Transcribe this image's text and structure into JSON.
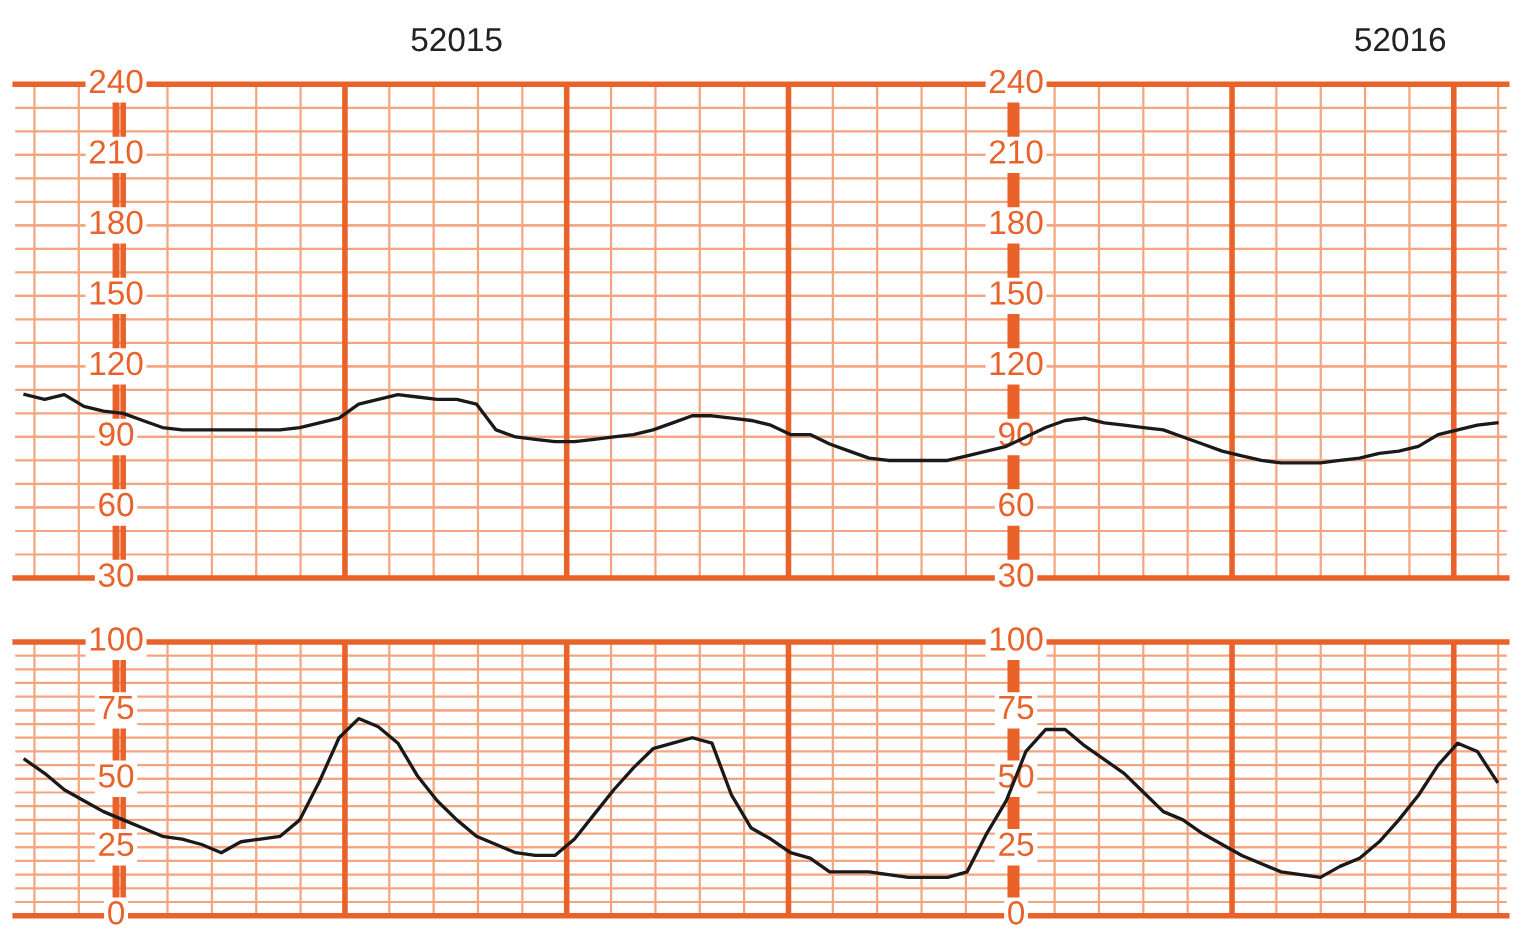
{
  "chart_data": [
    {
      "type": "line",
      "annotations": [
        "52015",
        "52016"
      ],
      "categories": [
        null,
        null,
        null,
        null,
        null,
        null,
        null,
        null,
        null,
        null,
        null,
        null,
        null,
        null,
        null,
        null,
        null,
        null,
        null,
        null,
        null,
        null,
        null,
        null,
        null,
        null,
        null,
        null,
        null,
        null,
        null,
        null,
        null,
        null,
        null,
        null,
        null,
        null,
        null,
        null,
        null,
        null,
        null,
        null,
        null,
        null,
        null,
        null,
        null,
        null,
        null,
        null,
        null,
        null,
        null,
        null,
        null,
        null,
        null,
        null,
        null,
        null,
        null,
        null,
        null,
        null,
        null,
        null,
        null,
        null,
        null,
        null,
        null,
        null,
        null,
        null
      ],
      "series": [
        {
          "color": "#1a1a1a",
          "values": [
            108,
            106,
            108,
            103,
            101,
            100,
            97,
            94,
            93,
            93,
            93,
            93,
            93,
            93,
            94,
            96,
            98,
            104,
            106,
            108,
            107,
            106,
            106,
            104,
            93,
            90,
            89,
            88,
            88,
            89,
            90,
            91,
            93,
            96,
            99,
            99,
            98,
            97,
            95,
            91,
            91,
            87,
            84,
            81,
            80,
            80,
            80,
            80,
            82,
            84,
            86,
            90,
            94,
            97,
            98,
            96,
            95,
            94,
            93,
            90,
            87,
            84,
            82,
            80,
            79,
            79,
            79,
            80,
            81,
            83,
            84,
            86,
            91,
            93,
            95,
            96
          ]
        }
      ],
      "ylim": [
        30,
        240
      ],
      "yticks": [
        30,
        60,
        90,
        120,
        150,
        180,
        210,
        240
      ],
      "y2lim": [
        30,
        240
      ],
      "y2ticks": [
        30,
        60,
        90,
        120,
        150,
        180,
        210,
        240
      ],
      "grid": true,
      "tick_labels": "y",
      "legend": false,
      "marker": "none",
      "line_style": "solid"
    },
    {
      "type": "line",
      "categories": [
        null,
        null,
        null,
        null,
        null,
        null,
        null,
        null,
        null,
        null,
        null,
        null,
        null,
        null,
        null,
        null,
        null,
        null,
        null,
        null,
        null,
        null,
        null,
        null,
        null,
        null,
        null,
        null,
        null,
        null,
        null,
        null,
        null,
        null,
        null,
        null,
        null,
        null,
        null,
        null,
        null,
        null,
        null,
        null,
        null,
        null,
        null,
        null,
        null,
        null,
        null,
        null,
        null,
        null,
        null,
        null,
        null,
        null,
        null,
        null,
        null,
        null,
        null,
        null,
        null,
        null,
        null,
        null,
        null,
        null,
        null,
        null,
        null,
        null,
        null,
        null
      ],
      "series": [
        {
          "color": "#1a1a1a",
          "values": [
            57,
            52,
            46,
            42,
            38,
            35,
            32,
            29,
            28,
            26,
            23,
            27,
            28,
            29,
            35,
            49,
            65,
            72,
            69,
            63,
            51,
            42,
            35,
            29,
            26,
            23,
            22,
            22,
            28,
            37,
            46,
            54,
            61,
            63,
            65,
            63,
            44,
            32,
            28,
            23,
            21,
            16,
            16,
            16,
            15,
            14,
            14,
            14,
            16,
            30,
            42,
            60,
            68,
            68,
            62,
            57,
            52,
            45,
            38,
            35,
            30,
            26,
            22,
            19,
            16,
            15,
            14,
            18,
            21,
            27,
            35,
            44,
            55,
            63,
            60,
            49
          ]
        }
      ],
      "ylim": [
        0,
        100
      ],
      "yticks": [
        0,
        25,
        50,
        75,
        100
      ],
      "y2lim": [
        0,
        100
      ],
      "y2ticks": [
        0,
        25,
        50,
        75,
        100
      ],
      "grid": true,
      "tick_labels": "y",
      "legend": false,
      "marker": "none",
      "line_style": "solid"
    }
  ]
}
